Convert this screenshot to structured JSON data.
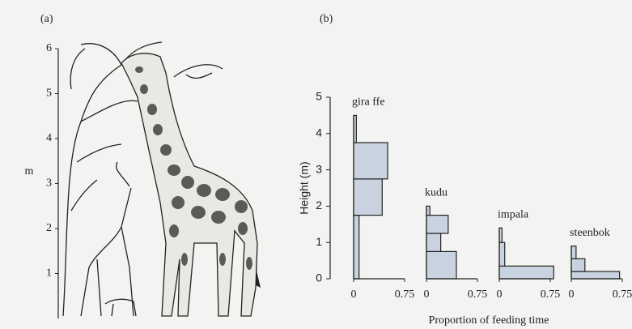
{
  "chart_data": [
    {
      "type": "illustration",
      "panel_label": "(a)",
      "ylabel": "m",
      "ylim": [
        0,
        6
      ],
      "yticks": [
        1,
        2,
        3,
        4,
        5,
        6
      ]
    },
    {
      "type": "step_profile",
      "panel_label": "(b)",
      "ylabel": "Height (m)",
      "xlabel": "Proportion of feeding time",
      "ylim": [
        0,
        5
      ],
      "yticks": [
        0,
        1,
        2,
        3,
        4,
        5
      ],
      "xlim": [
        0,
        0.75
      ],
      "xticks": [
        0,
        0.75
      ],
      "color": "#c9d3df",
      "series": [
        {
          "name": "gira ffe",
          "bins": [
            0,
            1.75,
            2.75,
            3.75,
            4.5
          ],
          "values": [
            0.08,
            0.42,
            0.5,
            0.04
          ]
        },
        {
          "name": "kudu",
          "bins": [
            0,
            0.75,
            1.25,
            1.75,
            2
          ],
          "values": [
            0.44,
            0.21,
            0.32,
            0.05
          ]
        },
        {
          "name": "impala",
          "bins": [
            0,
            0.35,
            1,
            1.4
          ],
          "values": [
            0.8,
            0.08,
            0.04
          ]
        },
        {
          "name": "steenbok",
          "bins": [
            0,
            0.2,
            0.55,
            0.9
          ],
          "values": [
            0.71,
            0.2,
            0.07
          ]
        }
      ]
    }
  ]
}
